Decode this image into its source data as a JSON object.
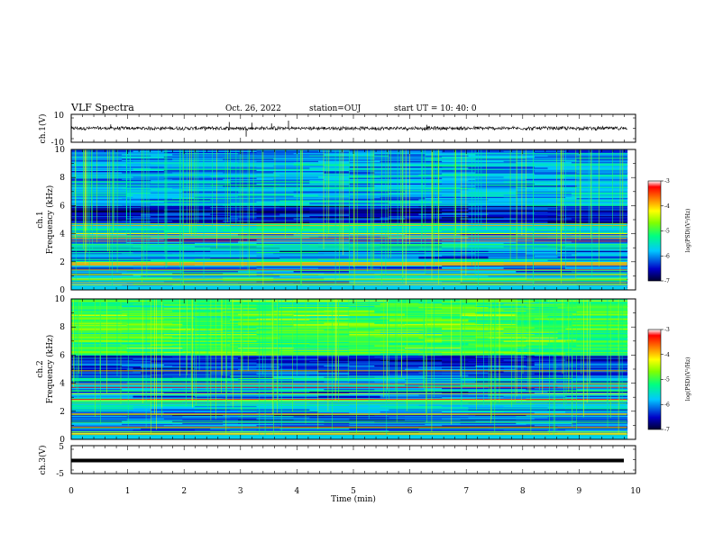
{
  "header": {
    "title": "VLF Spectra",
    "date": "Oct. 26, 2022",
    "station": "station=OUJ",
    "start_ut": "start  UT =  10: 40: 0"
  },
  "chart_data": [
    {
      "type": "line",
      "panel": "ch1-waveform",
      "ylabel": "ch.1(V)",
      "ylim": [
        -10,
        10
      ],
      "y_tick_labels": [
        "10",
        "-10"
      ],
      "x_range_min": [
        0,
        9.85
      ],
      "xlim": [
        0,
        10
      ],
      "series_color": "#000000"
    },
    {
      "type": "heatmap",
      "panel": "ch1-spectrogram",
      "ylabel": "ch.1",
      "ylabel2": "Frequency (kHz)",
      "ylim": [
        0,
        10
      ],
      "y_ticks": [
        0,
        2,
        4,
        6,
        8,
        10
      ],
      "xlim": [
        0,
        10
      ],
      "x_range_min": [
        0,
        9.85
      ],
      "colorbar": {
        "label": "log(PSD)(V²/Hz)",
        "range": [
          -7,
          -3
        ],
        "ticks": [
          "-3",
          "-4",
          "-5",
          "-6",
          "-7"
        ]
      }
    },
    {
      "type": "heatmap",
      "panel": "ch2-spectrogram",
      "ylabel": "ch.2",
      "ylabel2": "Frequency (kHz)",
      "ylim": [
        0,
        10
      ],
      "y_ticks": [
        0,
        2,
        4,
        6,
        8,
        10
      ],
      "xlim": [
        0,
        10
      ],
      "x_range_min": [
        0,
        9.85
      ],
      "colorbar": {
        "label": "log(PSD)(V²/Hz)",
        "range": [
          -7,
          -3
        ],
        "ticks": [
          "-3",
          "-4",
          "-5",
          "-6",
          "-7"
        ]
      }
    },
    {
      "type": "line",
      "panel": "ch3-waveform",
      "ylabel": "ch.3(V)",
      "ylim": [
        -5,
        5
      ],
      "y_tick_labels": [
        "5",
        "-5"
      ],
      "x_range_min": [
        0,
        9.85
      ],
      "xlim": [
        0,
        10
      ],
      "xlabel": "Time (min)",
      "x_ticks": [
        "0",
        "1",
        "2",
        "3",
        "4",
        "5",
        "6",
        "7",
        "8",
        "9",
        "10"
      ],
      "series_color": "#000000"
    }
  ]
}
